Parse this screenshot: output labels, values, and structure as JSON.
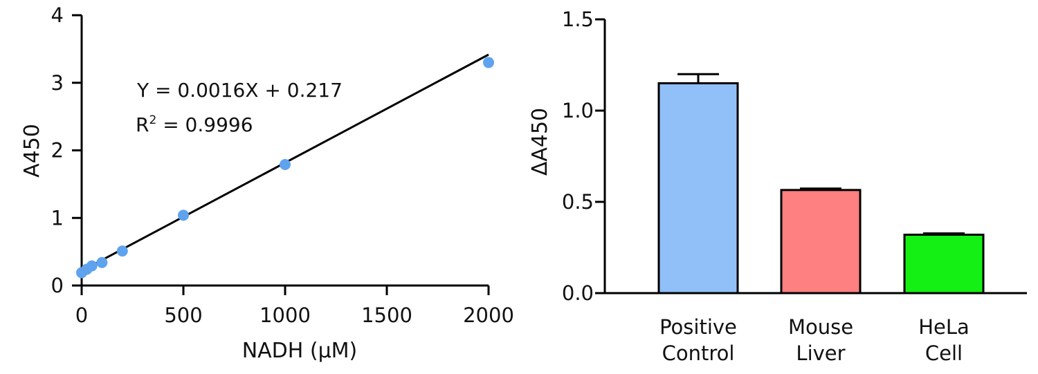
{
  "chart_data": [
    {
      "type": "scatter",
      "xlabel": "NADH (μM)",
      "ylabel": "A450",
      "xlim": [
        0,
        2000
      ],
      "ylim": [
        0,
        4
      ],
      "xticks": [
        "0",
        "500",
        "1000",
        "1500",
        "2000"
      ],
      "yticks": [
        "0",
        "1",
        "2",
        "3",
        "4"
      ],
      "marker_color": "#5fa3ef",
      "x": [
        0,
        25,
        50,
        100,
        200,
        500,
        1000,
        2000
      ],
      "y": [
        0.19,
        0.24,
        0.29,
        0.34,
        0.51,
        1.04,
        1.79,
        3.3
      ],
      "fit": {
        "slope": 0.0016,
        "intercept": 0.217
      },
      "annotations": {
        "equation": "Y = 0.0016X + 0.217",
        "r2_prefix": "R",
        "r2_sup": "2",
        "r2_value": " = 0.9996"
      }
    },
    {
      "type": "bar",
      "ylabel": "ΔA450",
      "ylim": [
        0,
        1.5
      ],
      "yticks": [
        "0.0",
        "0.5",
        "1.0",
        "1.5"
      ],
      "categories": [
        {
          "line1": "Positive",
          "line2": "Control"
        },
        {
          "line1": "Mouse",
          "line2": "Liver"
        },
        {
          "line1": "HeLa",
          "line2": "Cell"
        }
      ],
      "values": [
        1.15,
        0.565,
        0.32
      ],
      "errors": [
        0.05,
        0.008,
        0.007
      ],
      "colors": [
        "#91bff8",
        "#ff8080",
        "#14f014"
      ]
    }
  ]
}
